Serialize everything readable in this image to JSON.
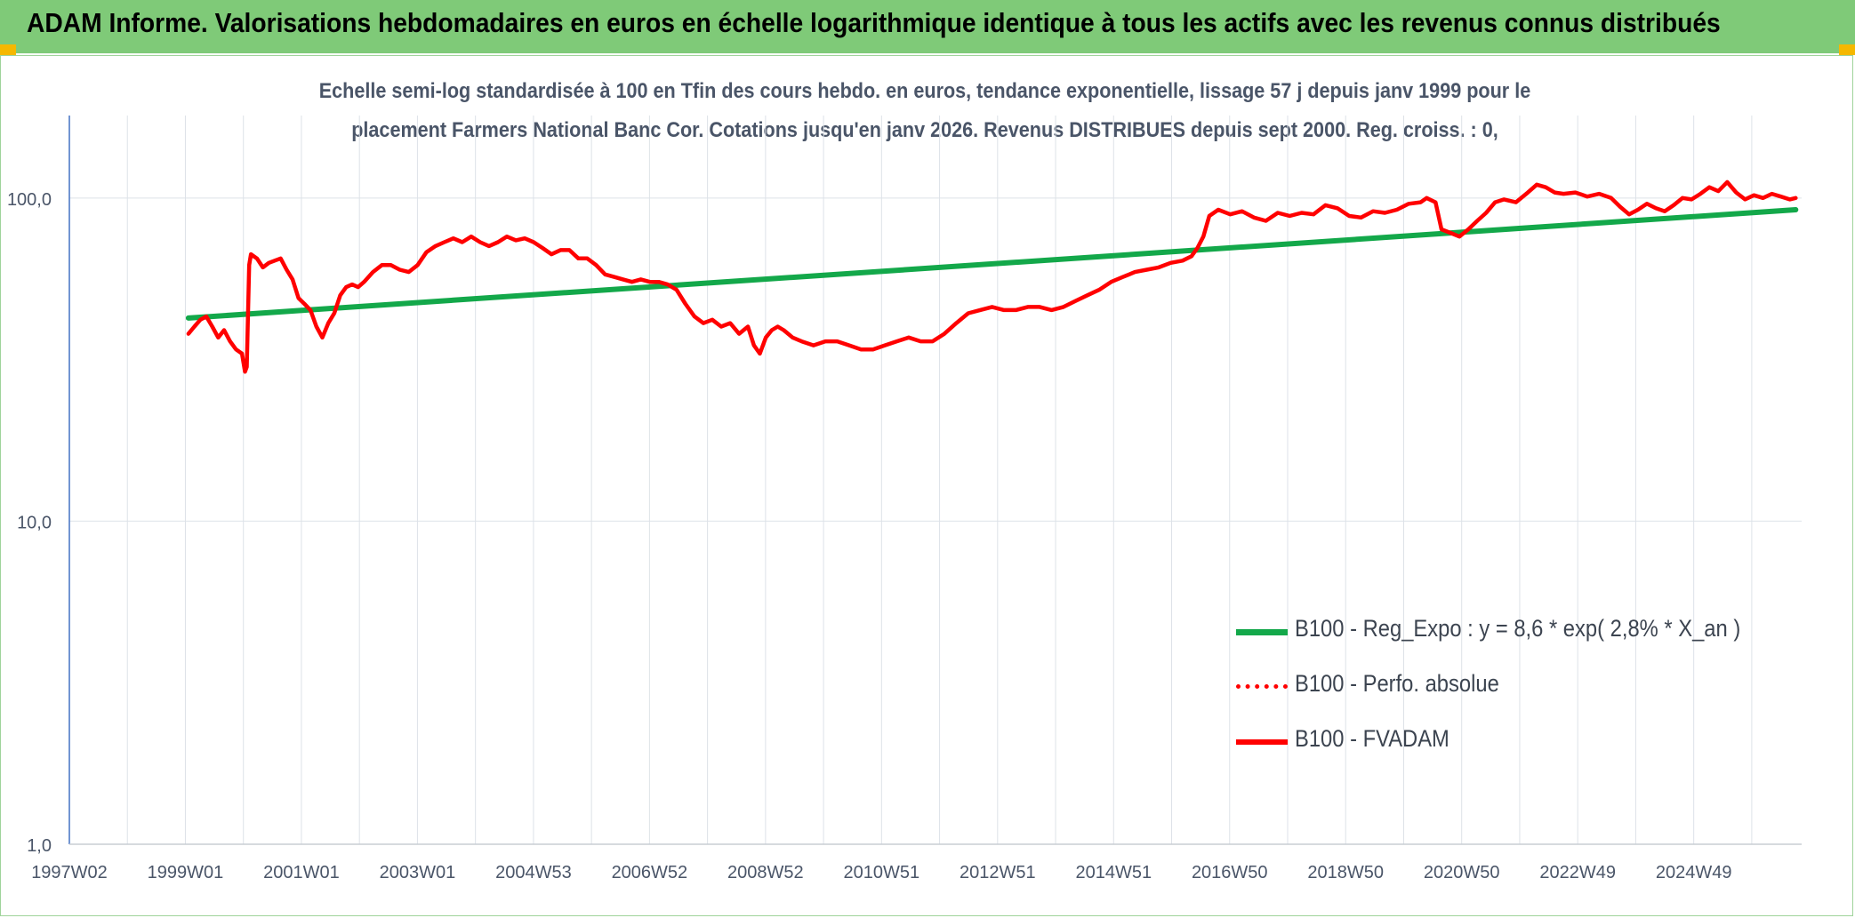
{
  "header": {
    "title": "ADAM Informe. Valorisations hebdomadaires en euros en échelle logarithmique identique à tous les actifs avec les revenus connus distribués"
  },
  "chart_data": {
    "type": "line",
    "title_line1": "Echelle semi-log standardisée à 100 en Tfin des cours hebdo. en euros, tendance exponentielle, lissage 57 j depuis janv 1999 pour le",
    "title_line2": "placement Farmers National Banc Cor. Cotations jusqu'en janv 2026. Revenus DISTRIBUES depuis sept 2000. Reg. croiss. : 0,",
    "y_scale": "log",
    "ylim": [
      1,
      180
    ],
    "y_ticks": [
      1,
      10,
      100
    ],
    "y_tick_labels": [
      "1,0",
      "10,0",
      "100,0"
    ],
    "x_tick_labels": [
      "1997W02",
      "1999W01",
      "2001W01",
      "2003W01",
      "2004W53",
      "2006W52",
      "2008W52",
      "2010W51",
      "2012W51",
      "2014W51",
      "2016W50",
      "2018W50",
      "2020W50",
      "2022W49",
      "2024W49"
    ],
    "xlim": [
      1997.0,
      2026.1
    ],
    "grid": true,
    "legend_position": "bottom-right",
    "series": [
      {
        "name": "B100 - Reg_Expo : y = 8,6 * exp( 2,8% *  X_an )",
        "color": "#13a84a",
        "style": "solid",
        "points": [
          [
            1999.0,
            42.5
          ],
          [
            2026.0,
            92.0
          ]
        ]
      },
      {
        "name": "B100 - Perfo. absolue",
        "color": "#ff0000",
        "style": "dotted",
        "points": []
      },
      {
        "name": "B100 - FVADAM",
        "color": "#ff0000",
        "style": "solid",
        "points": [
          [
            1999.0,
            38
          ],
          [
            1999.1,
            40
          ],
          [
            1999.2,
            42
          ],
          [
            1999.3,
            43
          ],
          [
            1999.4,
            40
          ],
          [
            1999.5,
            37
          ],
          [
            1999.6,
            39
          ],
          [
            1999.7,
            36
          ],
          [
            1999.8,
            34
          ],
          [
            1999.9,
            33
          ],
          [
            1999.95,
            29
          ],
          [
            1999.98,
            30
          ],
          [
            2000.02,
            62
          ],
          [
            2000.05,
            67
          ],
          [
            2000.15,
            65
          ],
          [
            2000.25,
            61
          ],
          [
            2000.35,
            63
          ],
          [
            2000.45,
            64
          ],
          [
            2000.55,
            65
          ],
          [
            2000.65,
            60
          ],
          [
            2000.75,
            56
          ],
          [
            2000.85,
            49
          ],
          [
            2000.95,
            47
          ],
          [
            2001.05,
            45
          ],
          [
            2001.15,
            40
          ],
          [
            2001.25,
            37
          ],
          [
            2001.35,
            41
          ],
          [
            2001.45,
            44
          ],
          [
            2001.55,
            50
          ],
          [
            2001.65,
            53
          ],
          [
            2001.75,
            54
          ],
          [
            2001.85,
            53
          ],
          [
            2001.95,
            55
          ],
          [
            2002.1,
            59
          ],
          [
            2002.25,
            62
          ],
          [
            2002.4,
            62
          ],
          [
            2002.55,
            60
          ],
          [
            2002.7,
            59
          ],
          [
            2002.85,
            62
          ],
          [
            2003.0,
            68
          ],
          [
            2003.15,
            71
          ],
          [
            2003.3,
            73
          ],
          [
            2003.45,
            75
          ],
          [
            2003.6,
            73
          ],
          [
            2003.75,
            76
          ],
          [
            2003.9,
            73
          ],
          [
            2004.05,
            71
          ],
          [
            2004.2,
            73
          ],
          [
            2004.35,
            76
          ],
          [
            2004.5,
            74
          ],
          [
            2004.65,
            75
          ],
          [
            2004.8,
            73
          ],
          [
            2004.95,
            70
          ],
          [
            2005.1,
            67
          ],
          [
            2005.25,
            69
          ],
          [
            2005.4,
            69
          ],
          [
            2005.55,
            65
          ],
          [
            2005.7,
            65
          ],
          [
            2005.85,
            62
          ],
          [
            2006.0,
            58
          ],
          [
            2006.15,
            57
          ],
          [
            2006.3,
            56
          ],
          [
            2006.45,
            55
          ],
          [
            2006.6,
            56
          ],
          [
            2006.75,
            55
          ],
          [
            2006.9,
            55
          ],
          [
            2007.05,
            54
          ],
          [
            2007.2,
            52
          ],
          [
            2007.35,
            47
          ],
          [
            2007.5,
            43
          ],
          [
            2007.65,
            41
          ],
          [
            2007.8,
            42
          ],
          [
            2007.95,
            40
          ],
          [
            2008.1,
            41
          ],
          [
            2008.25,
            38
          ],
          [
            2008.4,
            40
          ],
          [
            2008.5,
            35
          ],
          [
            2008.6,
            33
          ],
          [
            2008.7,
            37
          ],
          [
            2008.8,
            39
          ],
          [
            2008.9,
            40
          ],
          [
            2009.0,
            39
          ],
          [
            2009.15,
            37
          ],
          [
            2009.3,
            36
          ],
          [
            2009.5,
            35
          ],
          [
            2009.7,
            36
          ],
          [
            2009.9,
            36
          ],
          [
            2010.1,
            35
          ],
          [
            2010.3,
            34
          ],
          [
            2010.5,
            34
          ],
          [
            2010.7,
            35
          ],
          [
            2010.9,
            36
          ],
          [
            2011.1,
            37
          ],
          [
            2011.3,
            36
          ],
          [
            2011.5,
            36
          ],
          [
            2011.7,
            38
          ],
          [
            2011.9,
            41
          ],
          [
            2012.1,
            44
          ],
          [
            2012.3,
            45
          ],
          [
            2012.5,
            46
          ],
          [
            2012.7,
            45
          ],
          [
            2012.9,
            45
          ],
          [
            2013.1,
            46
          ],
          [
            2013.3,
            46
          ],
          [
            2013.5,
            45
          ],
          [
            2013.7,
            46
          ],
          [
            2013.9,
            48
          ],
          [
            2014.1,
            50
          ],
          [
            2014.3,
            52
          ],
          [
            2014.5,
            55
          ],
          [
            2014.7,
            57
          ],
          [
            2014.9,
            59
          ],
          [
            2015.1,
            60
          ],
          [
            2015.3,
            61
          ],
          [
            2015.5,
            63
          ],
          [
            2015.7,
            64
          ],
          [
            2015.85,
            66
          ],
          [
            2015.95,
            70
          ],
          [
            2016.05,
            76
          ],
          [
            2016.15,
            88
          ],
          [
            2016.3,
            92
          ],
          [
            2016.5,
            89
          ],
          [
            2016.7,
            91
          ],
          [
            2016.9,
            87
          ],
          [
            2017.1,
            85
          ],
          [
            2017.3,
            90
          ],
          [
            2017.5,
            88
          ],
          [
            2017.7,
            90
          ],
          [
            2017.9,
            89
          ],
          [
            2018.1,
            95
          ],
          [
            2018.3,
            93
          ],
          [
            2018.5,
            88
          ],
          [
            2018.7,
            87
          ],
          [
            2018.9,
            91
          ],
          [
            2019.1,
            90
          ],
          [
            2019.3,
            92
          ],
          [
            2019.5,
            96
          ],
          [
            2019.7,
            97
          ],
          [
            2019.8,
            100
          ],
          [
            2019.95,
            97
          ],
          [
            2020.05,
            80
          ],
          [
            2020.2,
            78
          ],
          [
            2020.35,
            76
          ],
          [
            2020.5,
            80
          ],
          [
            2020.65,
            85
          ],
          [
            2020.8,
            90
          ],
          [
            2020.95,
            97
          ],
          [
            2021.1,
            99
          ],
          [
            2021.3,
            97
          ],
          [
            2021.5,
            104
          ],
          [
            2021.65,
            110
          ],
          [
            2021.8,
            108
          ],
          [
            2021.95,
            104
          ],
          [
            2022.1,
            103
          ],
          [
            2022.3,
            104
          ],
          [
            2022.5,
            101
          ],
          [
            2022.7,
            103
          ],
          [
            2022.9,
            100
          ],
          [
            2023.05,
            94
          ],
          [
            2023.2,
            89
          ],
          [
            2023.35,
            92
          ],
          [
            2023.5,
            96
          ],
          [
            2023.65,
            93
          ],
          [
            2023.8,
            91
          ],
          [
            2023.95,
            95
          ],
          [
            2024.1,
            100
          ],
          [
            2024.25,
            99
          ],
          [
            2024.4,
            103
          ],
          [
            2024.55,
            108
          ],
          [
            2024.7,
            105
          ],
          [
            2024.85,
            112
          ],
          [
            2025.0,
            104
          ],
          [
            2025.15,
            99
          ],
          [
            2025.3,
            102
          ],
          [
            2025.45,
            100
          ],
          [
            2025.6,
            103
          ],
          [
            2025.75,
            101
          ],
          [
            2025.9,
            99
          ],
          [
            2026.0,
            100
          ]
        ]
      }
    ]
  }
}
